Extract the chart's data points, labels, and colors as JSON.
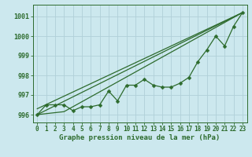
{
  "background_color": "#cce8ee",
  "grid_color": "#b0d0d8",
  "line_color": "#2d6b2d",
  "xlabel": "Graphe pression niveau de la mer (hPa)",
  "xlim": [
    -0.5,
    23.5
  ],
  "ylim": [
    995.6,
    1001.6
  ],
  "yticks": [
    996,
    997,
    998,
    999,
    1000,
    1001
  ],
  "xticks": [
    0,
    1,
    2,
    3,
    4,
    5,
    6,
    7,
    8,
    9,
    10,
    11,
    12,
    13,
    14,
    15,
    16,
    17,
    18,
    19,
    20,
    21,
    22,
    23
  ],
  "hours": [
    0,
    1,
    2,
    3,
    4,
    5,
    6,
    7,
    8,
    9,
    10,
    11,
    12,
    13,
    14,
    15,
    16,
    17,
    18,
    19,
    20,
    21,
    22,
    23
  ],
  "pressure": [
    996.0,
    996.5,
    996.5,
    996.5,
    996.2,
    996.4,
    996.4,
    996.5,
    997.2,
    996.7,
    997.5,
    997.5,
    997.8,
    997.5,
    997.4,
    997.4,
    997.6,
    997.9,
    998.7,
    999.3,
    1000.0,
    999.5,
    1000.5,
    1001.2
  ],
  "trend1_x": [
    0,
    23
  ],
  "trend1_y": [
    996.0,
    1001.2
  ],
  "trend2_x": [
    0,
    3,
    23
  ],
  "trend2_y": [
    996.0,
    996.15,
    1001.2
  ],
  "trend3_x": [
    0,
    23
  ],
  "trend3_y": [
    996.3,
    1001.2
  ],
  "marker_size": 2.5,
  "linewidth": 0.9,
  "tick_fontsize": 5.5,
  "xlabel_fontsize": 6.5
}
